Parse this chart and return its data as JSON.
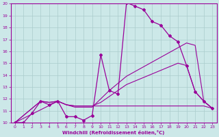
{
  "xlabel": "Windchill (Refroidissement éolien,°C)",
  "background_color": "#cce8e8",
  "grid_color": "#aacccc",
  "line_color": "#990099",
  "xlim": [
    -0.5,
    23.5
  ],
  "ylim": [
    10,
    20
  ],
  "xticks": [
    0,
    1,
    2,
    3,
    4,
    5,
    6,
    7,
    8,
    9,
    10,
    11,
    12,
    13,
    14,
    15,
    16,
    17,
    18,
    19,
    20,
    21,
    22,
    23
  ],
  "yticks": [
    10,
    11,
    12,
    13,
    14,
    15,
    16,
    17,
    18,
    19,
    20
  ],
  "series_main": {
    "x": [
      0,
      1,
      2,
      3,
      4,
      5,
      6,
      7,
      8,
      9,
      10,
      11,
      12,
      13,
      14,
      15,
      16,
      17,
      18,
      19,
      20,
      21,
      22,
      23
    ],
    "y": [
      10.0,
      10.0,
      10.8,
      11.8,
      11.5,
      11.8,
      10.5,
      10.5,
      10.2,
      10.6,
      15.7,
      12.7,
      12.4,
      20.1,
      19.8,
      19.5,
      18.5,
      18.2,
      17.3,
      16.8,
      14.8,
      12.6,
      11.8,
      11.2
    ]
  },
  "series_flat": {
    "x": [
      0,
      5,
      6,
      7,
      8,
      9,
      10,
      11,
      12,
      13,
      14,
      15,
      16,
      17,
      18,
      19,
      20,
      21,
      22,
      23
    ],
    "y": [
      10.0,
      11.8,
      11.5,
      11.4,
      11.4,
      11.4,
      11.4,
      11.4,
      11.4,
      11.4,
      11.4,
      11.4,
      11.4,
      11.4,
      11.4,
      11.4,
      11.4,
      11.4,
      11.4,
      11.2
    ]
  },
  "series_rising1": {
    "x": [
      0,
      3,
      4,
      5,
      6,
      7,
      8,
      9,
      10,
      11,
      12,
      13,
      14,
      15,
      16,
      17,
      18,
      19,
      20,
      21,
      22,
      23
    ],
    "y": [
      10.0,
      11.8,
      11.7,
      11.8,
      11.5,
      11.4,
      11.4,
      11.4,
      11.7,
      12.2,
      12.7,
      13.2,
      13.5,
      13.8,
      14.1,
      14.4,
      14.7,
      15.0,
      14.8,
      12.6,
      11.8,
      11.2
    ]
  },
  "series_rising2": {
    "x": [
      0,
      3,
      4,
      5,
      6,
      7,
      8,
      9,
      10,
      11,
      12,
      13,
      14,
      15,
      16,
      17,
      18,
      19,
      20,
      21,
      22,
      23
    ],
    "y": [
      10.0,
      11.8,
      11.7,
      11.8,
      11.5,
      11.3,
      11.3,
      11.3,
      12.0,
      12.7,
      13.3,
      13.9,
      14.3,
      14.7,
      15.1,
      15.5,
      15.9,
      16.3,
      16.7,
      16.5,
      11.8,
      11.2
    ]
  }
}
